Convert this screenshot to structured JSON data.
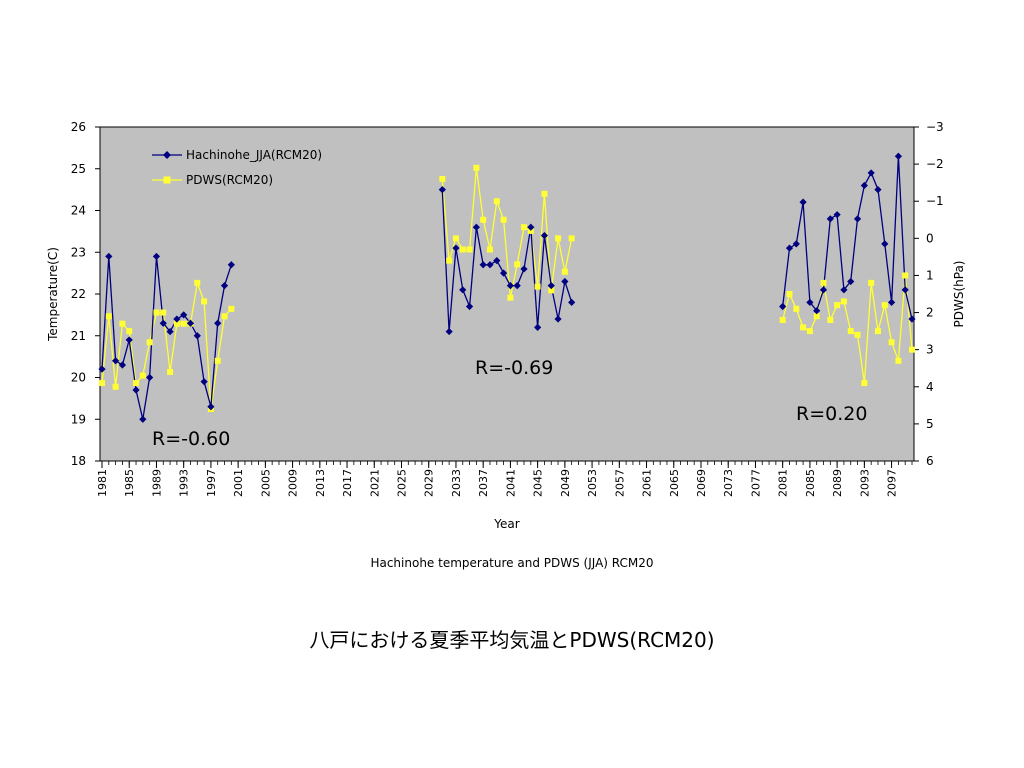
{
  "chart_data": {
    "type": "line",
    "title": "",
    "subtitle": "Hachinohe temperature and PDWS (JJA) RCM20",
    "xlabel": "Year",
    "ylabel": "Temperature(C)",
    "y2label": "PDWS(hPa)",
    "xlim": [
      1981,
      2100
    ],
    "ylim": [
      18,
      26
    ],
    "y2lim": [
      -3,
      6
    ],
    "y2_inverted": true,
    "yticks": [
      "18",
      "19",
      "20",
      "21",
      "22",
      "23",
      "24",
      "25",
      "26"
    ],
    "y2ticks": [
      "−3",
      "−2",
      "−1",
      "0",
      "1",
      "2",
      "3",
      "4",
      "5",
      "6"
    ],
    "xticks": [
      "1981",
      "1985",
      "1989",
      "1993",
      "1997",
      "2001",
      "2005",
      "2009",
      "2013",
      "2017",
      "2021",
      "2025",
      "2029",
      "2033",
      "2037",
      "2041",
      "2045",
      "2049",
      "2053",
      "2057",
      "2061",
      "2065",
      "2069",
      "2073",
      "2077",
      "2081",
      "2085",
      "2089",
      "2093",
      "2097"
    ],
    "grid": false,
    "background": "#c0c0c0",
    "legend_position": "top-left",
    "series": [
      {
        "name": "Hachinohe_JJA(RCM20)",
        "axis": "left",
        "color": "#000080",
        "marker": "diamond",
        "segments": [
          {
            "x": [
              1981,
              1982,
              1983,
              1984,
              1985,
              1986,
              1987,
              1988,
              1989,
              1990,
              1991,
              1992,
              1993,
              1994,
              1995,
              1996,
              1997,
              1998,
              1999,
              2000
            ],
            "y": [
              20.2,
              22.9,
              20.4,
              20.3,
              20.9,
              19.7,
              19.0,
              20.0,
              22.9,
              21.3,
              21.1,
              21.4,
              21.5,
              21.3,
              21.0,
              19.9,
              19.3,
              21.3,
              22.2,
              22.7
            ]
          },
          {
            "x": [
              2031,
              2032,
              2033,
              2034,
              2035,
              2036,
              2037,
              2038,
              2039,
              2040,
              2041,
              2042,
              2043,
              2044,
              2045,
              2046,
              2047,
              2048,
              2049,
              2050
            ],
            "y": [
              24.5,
              21.1,
              23.1,
              22.1,
              21.7,
              23.6,
              22.7,
              22.7,
              22.8,
              22.5,
              22.2,
              22.2,
              22.6,
              23.6,
              21.2,
              23.4,
              22.2,
              21.4,
              22.3,
              21.8
            ]
          },
          {
            "x": [
              2081,
              2082,
              2083,
              2084,
              2085,
              2086,
              2087,
              2088,
              2089,
              2090,
              2091,
              2092,
              2093,
              2094,
              2095,
              2096,
              2097,
              2098,
              2099,
              2100
            ],
            "y": [
              21.7,
              23.1,
              23.2,
              24.2,
              21.8,
              21.6,
              22.1,
              23.8,
              23.9,
              22.1,
              22.3,
              23.8,
              24.6,
              24.9,
              24.5,
              23.2,
              21.8,
              25.3,
              22.1,
              21.4
            ]
          }
        ]
      },
      {
        "name": "PDWS(RCM20)",
        "axis": "right",
        "color": "#ffff33",
        "marker": "square",
        "segments": [
          {
            "x": [
              1981,
              1982,
              1983,
              1984,
              1985,
              1986,
              1987,
              1988,
              1989,
              1990,
              1991,
              1992,
              1993,
              1994,
              1995,
              1996,
              1997,
              1998,
              1999,
              2000
            ],
            "y": [
              3.9,
              2.1,
              4.0,
              2.3,
              2.5,
              3.9,
              3.7,
              2.8,
              2.0,
              2.0,
              3.6,
              2.3,
              2.3,
              2.3,
              1.2,
              1.7,
              4.6,
              3.3,
              2.1,
              1.9
            ]
          },
          {
            "x": [
              2031,
              2032,
              2033,
              2034,
              2035,
              2036,
              2037,
              2038,
              2039,
              2040,
              2041,
              2042,
              2043,
              2044,
              2045,
              2046,
              2047,
              2048,
              2049,
              2050
            ],
            "y": [
              -1.6,
              0.6,
              0.0,
              0.3,
              0.3,
              -1.9,
              -0.5,
              0.3,
              -1.0,
              -0.5,
              1.6,
              0.7,
              -0.3,
              -0.2,
              1.3,
              -1.2,
              1.4,
              0.0,
              0.9,
              0.0
            ]
          },
          {
            "x": [
              2081,
              2082,
              2083,
              2084,
              2085,
              2086,
              2087,
              2088,
              2089,
              2090,
              2091,
              2092,
              2093,
              2094,
              2095,
              2096,
              2097,
              2098,
              2099,
              2100
            ],
            "y": [
              2.2,
              1.5,
              1.9,
              2.4,
              2.5,
              2.1,
              1.2,
              2.2,
              1.8,
              1.7,
              2.5,
              2.6,
              3.9,
              1.2,
              2.5,
              1.8,
              2.8,
              3.3,
              1.0,
              3.0
            ]
          }
        ]
      }
    ],
    "annotations": [
      "R=-0.60",
      "R=-0.69",
      "R=0.20"
    ]
  },
  "caption": "八戸における夏季平均気温とPDWS(RCM20)"
}
